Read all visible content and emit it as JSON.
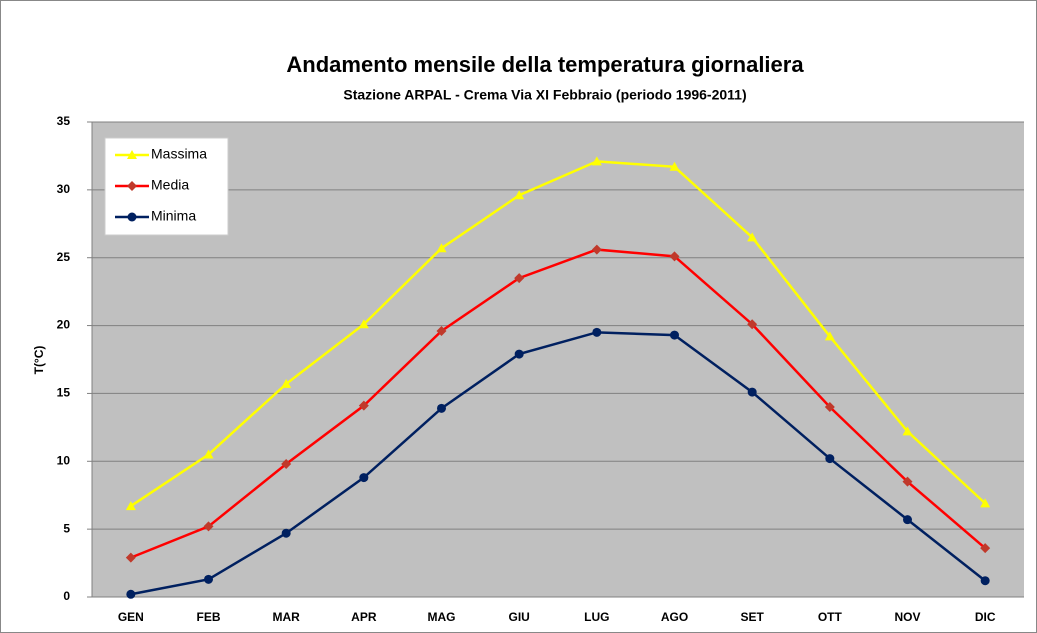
{
  "chart_data": {
    "type": "line",
    "title": "Andamento mensile della temperatura giornaliera",
    "subtitle": "Stazione ARPAL - Crema  Via XI Febbraio  (periodo 1996-2011)",
    "y_label": "T(°C)",
    "categories": [
      "GEN",
      "FEB",
      "MAR",
      "APR",
      "MAG",
      "GIU",
      "LUG",
      "AGO",
      "SET",
      "OTT",
      "NOV",
      "DIC"
    ],
    "series": [
      {
        "name": "Massima",
        "color": "#ffff00",
        "marker": "triangle",
        "values": [
          6.7,
          10.5,
          15.7,
          20.1,
          25.7,
          29.6,
          32.1,
          31.7,
          26.5,
          19.2,
          12.2,
          6.9
        ]
      },
      {
        "name": "Media",
        "color": "#ff0000",
        "marker": "diamond",
        "values": [
          2.9,
          5.2,
          9.8,
          14.1,
          19.6,
          23.5,
          25.6,
          25.1,
          20.1,
          14.0,
          8.5,
          3.6
        ]
      },
      {
        "name": "Minima",
        "color": "#002060",
        "marker": "circle",
        "values": [
          0.2,
          1.3,
          4.7,
          8.8,
          13.9,
          17.9,
          19.5,
          19.3,
          15.1,
          10.2,
          5.7,
          1.2
        ]
      }
    ],
    "ylim": [
      0,
      35
    ],
    "yticks": [
      0,
      5,
      10,
      15,
      20,
      25,
      30,
      35
    ],
    "grid": true,
    "legend": "top-left",
    "plot_background": "#c0c0c0"
  }
}
